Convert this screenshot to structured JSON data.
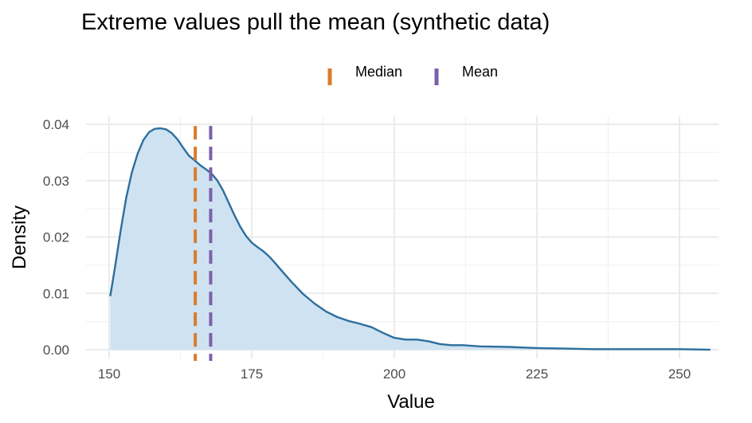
{
  "chart_data": {
    "type": "area",
    "title": "Extreme values pull the mean (synthetic data)",
    "xlabel": "Value",
    "ylabel": "Density",
    "xlim": [
      150,
      255
    ],
    "ylim": [
      0,
      0.04
    ],
    "x_ticks": [
      {
        "value": 150,
        "label": "150"
      },
      {
        "value": 175,
        "label": "175"
      },
      {
        "value": 200,
        "label": "200"
      },
      {
        "value": 225,
        "label": "225"
      },
      {
        "value": 250,
        "label": "250"
      }
    ],
    "y_ticks": [
      {
        "value": 0,
        "label": "0.00"
      },
      {
        "value": 0.01,
        "label": "0.01"
      },
      {
        "value": 0.02,
        "label": "0.02"
      },
      {
        "value": 0.03,
        "label": "0.03"
      },
      {
        "value": 0.04,
        "label": "0.04"
      }
    ],
    "grid": true,
    "legend_position": "top",
    "density": {
      "x": [
        150.2,
        151,
        152,
        153,
        154,
        155,
        156,
        157,
        158,
        159,
        160,
        161,
        162,
        163,
        164,
        165,
        166,
        167,
        168,
        169,
        170,
        171,
        172,
        173,
        174,
        175,
        176,
        177,
        178,
        179,
        180,
        182,
        184,
        186,
        188,
        190,
        192,
        194,
        196,
        198,
        200,
        202,
        204,
        206,
        208,
        210,
        212,
        215,
        220,
        225,
        230,
        235,
        240,
        245,
        250,
        255.4
      ],
      "y": [
        0.0095,
        0.0145,
        0.021,
        0.027,
        0.0315,
        0.0348,
        0.0372,
        0.0386,
        0.0392,
        0.0393,
        0.0391,
        0.0384,
        0.0373,
        0.0358,
        0.0344,
        0.0336,
        0.0327,
        0.032,
        0.0312,
        0.03,
        0.0282,
        0.026,
        0.0238,
        0.0218,
        0.0202,
        0.019,
        0.0182,
        0.0175,
        0.0166,
        0.0155,
        0.0143,
        0.012,
        0.0099,
        0.0082,
        0.0068,
        0.0058,
        0.0051,
        0.0046,
        0.004,
        0.003,
        0.0021,
        0.0018,
        0.0018,
        0.0015,
        0.001,
        0.0008,
        0.0008,
        0.0006,
        0.0005,
        0.0003,
        0.0002,
        0.0001,
        0.0001,
        0.0001,
        0.0001,
        0.0
      ],
      "line_color": "#2c6f9e",
      "fill_color": "#cfe2f1"
    },
    "vlines": [
      {
        "name": "Median",
        "x": 165.1,
        "color": "#d97c2b"
      },
      {
        "name": "Mean",
        "x": 167.8,
        "color": "#7b5fac"
      }
    ]
  }
}
